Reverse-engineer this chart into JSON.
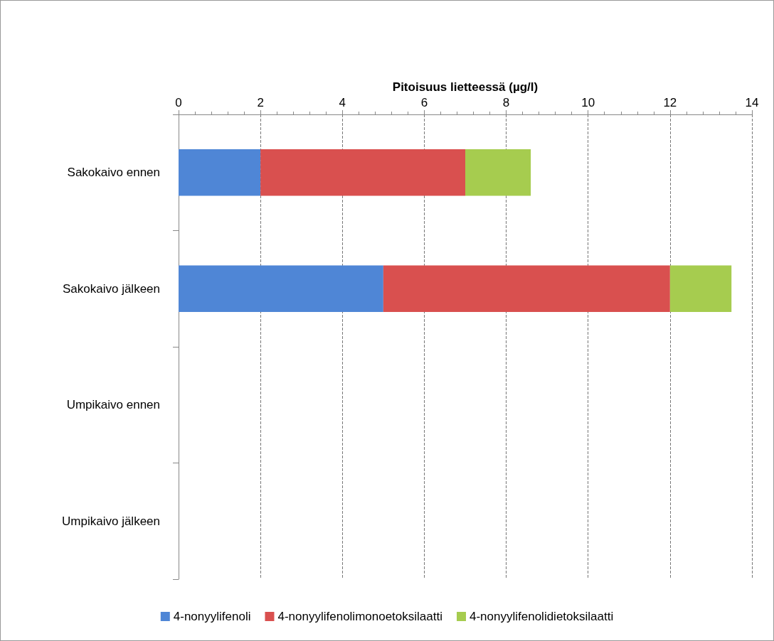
{
  "chart_data": {
    "type": "bar",
    "orientation": "horizontal",
    "stacked": true,
    "xlabel": "Pitoisuus lietteessä (µg/l)",
    "categories": [
      "Sakokaivo ennen",
      "Sakokaivo jälkeen",
      "Umpikaivo ennen",
      "Umpikaivo jälkeen"
    ],
    "series": [
      {
        "name": "4-nonyylifenoli",
        "color": "#4f86d6",
        "values": [
          2,
          5,
          null,
          null
        ]
      },
      {
        "name": "4-nonyylifenolimonoetoksilaatti",
        "color": "#d9504f",
        "values": [
          5,
          7,
          null,
          null
        ]
      },
      {
        "name": "4-nonyylifenolidietoksilaatti",
        "color": "#a6cc4f",
        "values": [
          1.6,
          1.5,
          null,
          null
        ]
      }
    ],
    "xlim": [
      0,
      14
    ],
    "xticks": [
      0,
      2,
      4,
      6,
      8,
      10,
      12,
      14
    ],
    "grid": "x",
    "legend": "bottom"
  }
}
